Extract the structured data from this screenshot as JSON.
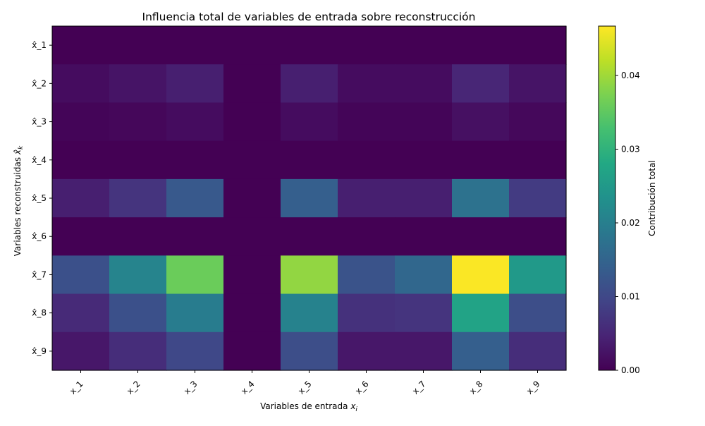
{
  "chart_data": {
    "type": "heatmap",
    "title": "Influencia total de variables de entrada sobre reconstrucción",
    "xlabel": "Variables de entrada",
    "xlabel_var": "x",
    "xlabel_sub": "i",
    "ylabel": "Variables reconstruidas",
    "ylabel_var": "x̂",
    "ylabel_sub": "k",
    "x_categories": [
      "x_1",
      "x_2",
      "x_3",
      "x_4",
      "x_5",
      "x_6",
      "x_7",
      "x_8",
      "x_9"
    ],
    "y_categories": [
      "x̂_1",
      "x̂_2",
      "x̂_3",
      "x̂_4",
      "x̂_5",
      "x̂_6",
      "x̂_7",
      "x̂_8",
      "x̂_9"
    ],
    "values": [
      [
        0.0,
        0.0,
        0.0,
        0.0,
        0.0,
        0.0,
        0.0,
        0.0,
        0.0
      ],
      [
        0.0015,
        0.0025,
        0.004,
        0.0,
        0.004,
        0.0015,
        0.0015,
        0.005,
        0.0025
      ],
      [
        0.0005,
        0.0008,
        0.0015,
        0.0,
        0.0015,
        0.0005,
        0.0005,
        0.002,
        0.001
      ],
      [
        0.0,
        0.0,
        0.0,
        0.0,
        0.0,
        0.0,
        0.0,
        0.0,
        0.0
      ],
      [
        0.004,
        0.007,
        0.013,
        0.0,
        0.014,
        0.004,
        0.004,
        0.0175,
        0.008
      ],
      [
        0.0,
        0.0,
        0.0,
        0.0,
        0.0,
        0.0,
        0.0,
        0.0,
        0.0
      ],
      [
        0.0115,
        0.021,
        0.036,
        0.0,
        0.039,
        0.012,
        0.0155,
        0.0465,
        0.025
      ],
      [
        0.0055,
        0.0115,
        0.0195,
        0.0,
        0.0205,
        0.0065,
        0.007,
        0.027,
        0.011
      ],
      [
        0.003,
        0.006,
        0.01,
        0.0,
        0.011,
        0.003,
        0.003,
        0.014,
        0.006
      ]
    ],
    "vmin": 0.0,
    "vmax": 0.0467,
    "colormap": "viridis",
    "colorbar_label": "Contribución total",
    "colorbar_ticks": [
      "0.00",
      "0.01",
      "0.02",
      "0.03",
      "0.04"
    ],
    "colorbar_tick_values": [
      0.0,
      0.01,
      0.02,
      0.03,
      0.04
    ],
    "grid": false,
    "x_tick_rotation": "45 degrees"
  }
}
